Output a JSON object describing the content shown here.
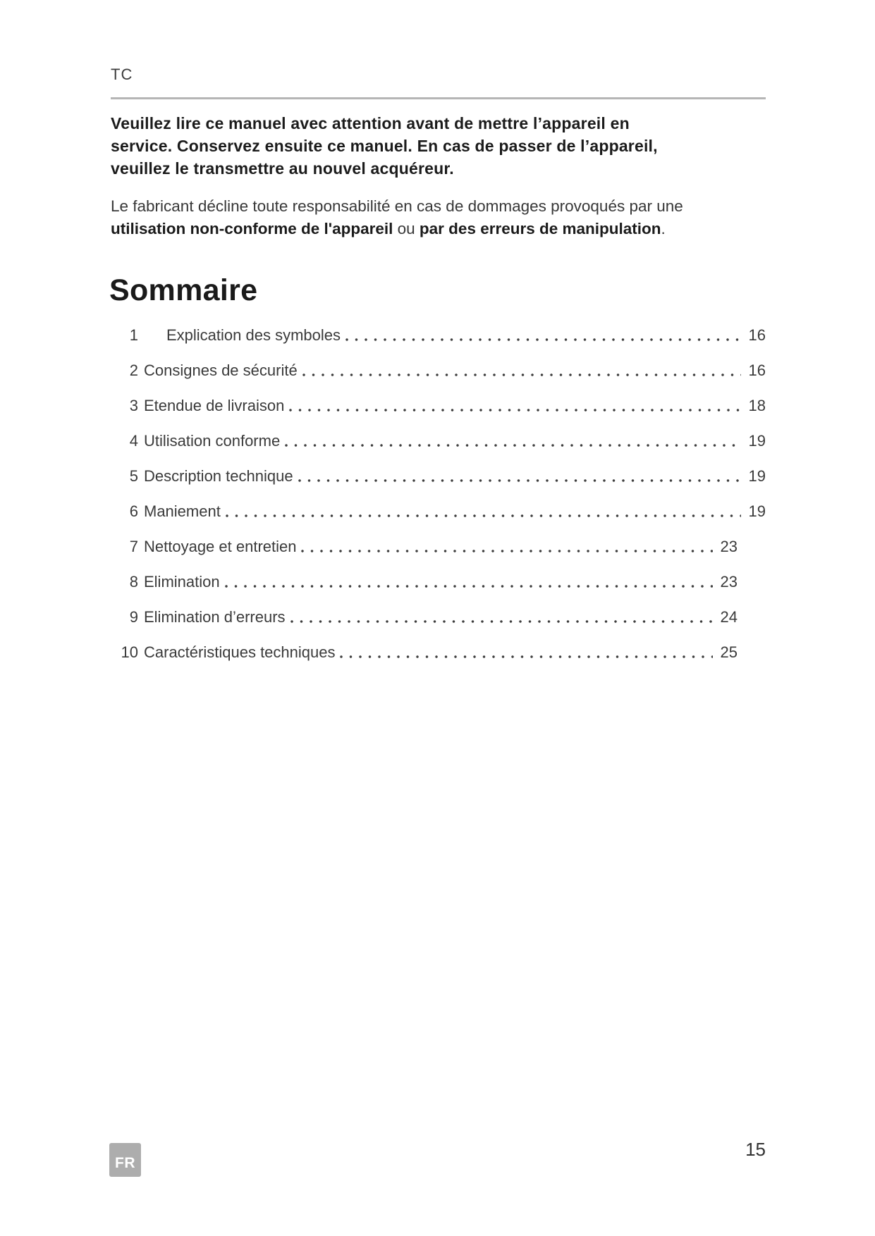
{
  "header": {
    "label": "TC"
  },
  "intro": {
    "text": "Veuillez lire ce manuel avec attention avant de mettre l’appareil en\nservice. Conservez ensuite ce manuel. En cas de passer de l’appareil,\nveuillez le transmettre au nouvel acquéreur."
  },
  "disclaimer": {
    "line1": "Le fabricant décline toute responsabilité en cas de dommages provoqués par une",
    "bold1": "utilisation non-conforme de l'appareil",
    "mid": " ou ",
    "bold2": "par des erreurs de manipulation",
    "end": "."
  },
  "toc": {
    "title": "Sommaire",
    "items": [
      {
        "num": "1",
        "label": "Explication des symboles",
        "page": "16"
      },
      {
        "num": "2",
        "label": "Consignes de sécurité",
        "page": "16"
      },
      {
        "num": "3",
        "label": "Etendue de livraison",
        "page": "18"
      },
      {
        "num": "4",
        "label": "Utilisation conforme",
        "page": "19"
      },
      {
        "num": "5",
        "label": "Description technique",
        "page": "19"
      },
      {
        "num": "6",
        "label": "Maniement",
        "page": "19"
      },
      {
        "num": "7",
        "label": "Nettoyage et entretien",
        "page": "23"
      },
      {
        "num": "8",
        "label": "Elimination",
        "page": "23"
      },
      {
        "num": "9",
        "label": "Elimination d’erreurs",
        "page": "24"
      },
      {
        "num": "10",
        "label": "Caractéristiques techniques",
        "page": "25"
      }
    ]
  },
  "footer": {
    "language_badge": "FR",
    "page_number": "15"
  },
  "colors": {
    "divider": "#b5b5b5",
    "badge_bg": "#adadad",
    "text_dark": "#1b1b1b",
    "text_body": "#373737"
  }
}
